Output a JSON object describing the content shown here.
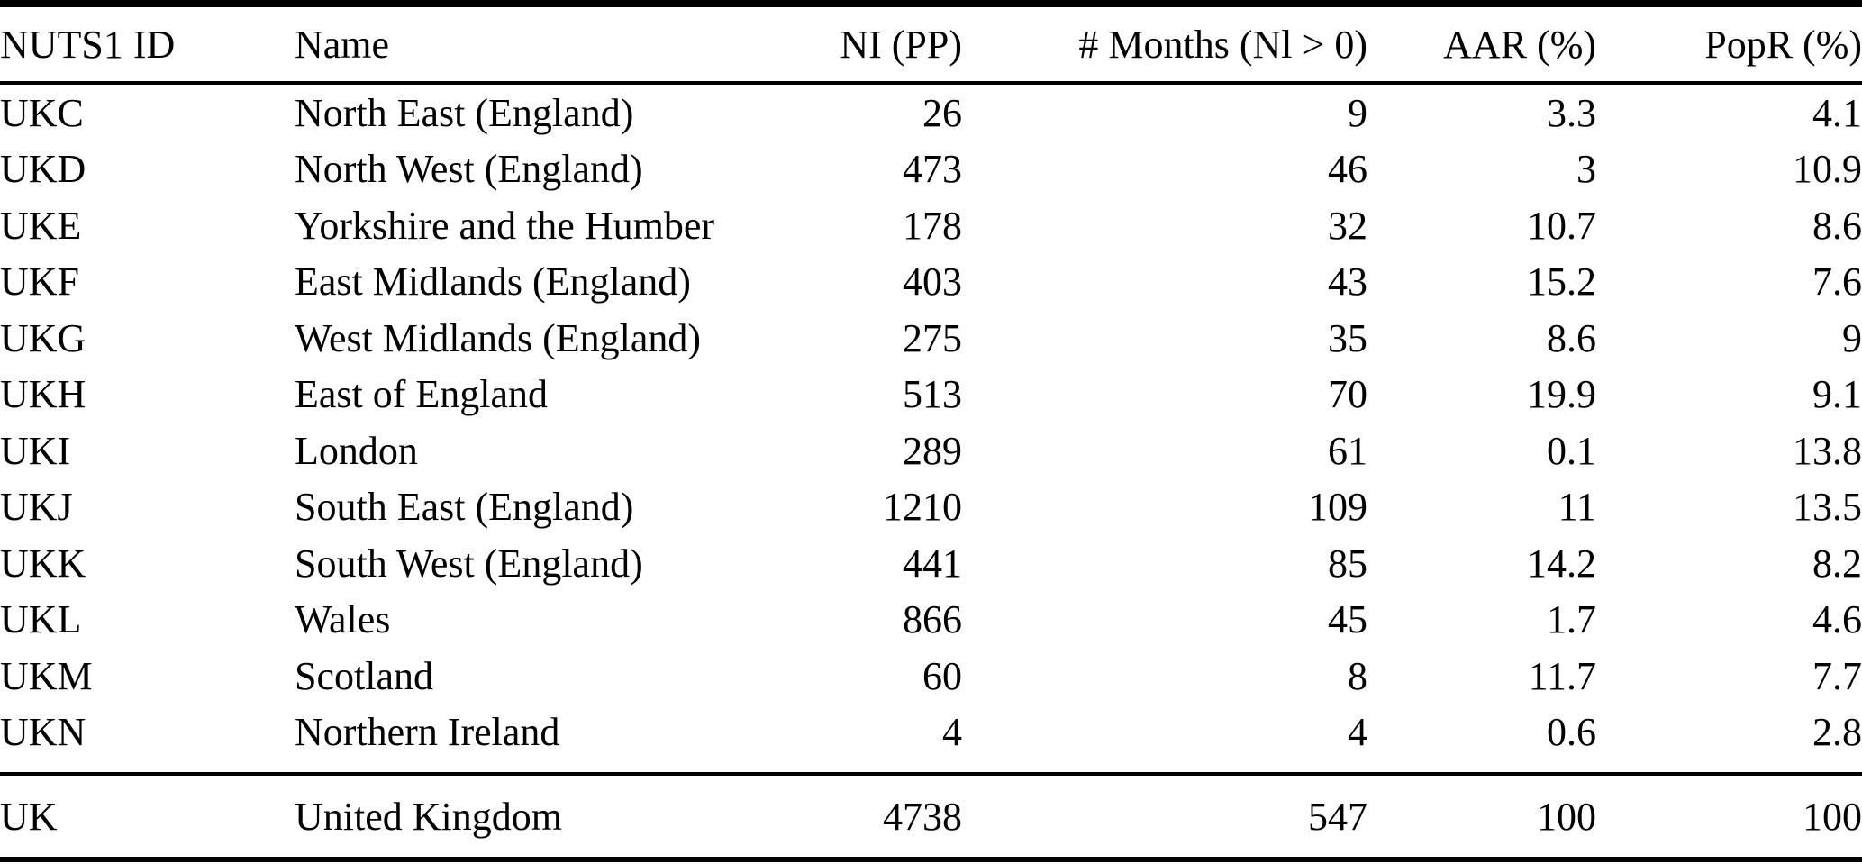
{
  "colors": {
    "text": "#000000",
    "background": "#ffffff",
    "rule": "#000000"
  },
  "chart_data": {
    "type": "table",
    "columns": [
      "NUTS1 ID",
      "Name",
      "NI (PP)",
      "# Months (Nl > 0)",
      "AAR (%)",
      "PopR (%)"
    ],
    "column_alignments": [
      "left",
      "left",
      "right",
      "right",
      "right",
      "right"
    ],
    "rows": [
      [
        "UKC",
        "North East (England)",
        "26",
        "9",
        "3.3",
        "4.1"
      ],
      [
        "UKD",
        "North West (England)",
        "473",
        "46",
        "3",
        "10.9"
      ],
      [
        "UKE",
        "Yorkshire and the Humber",
        "178",
        "32",
        "10.7",
        "8.6"
      ],
      [
        "UKF",
        "East Midlands (England)",
        "403",
        "43",
        "15.2",
        "7.6"
      ],
      [
        "UKG",
        "West Midlands (England)",
        "275",
        "35",
        "8.6",
        "9"
      ],
      [
        "UKH",
        "East of England",
        "513",
        "70",
        "19.9",
        "9.1"
      ],
      [
        "UKI",
        "London",
        "289",
        "61",
        "0.1",
        "13.8"
      ],
      [
        "UKJ",
        "South East (England)",
        "1210",
        "109",
        "11",
        "13.5"
      ],
      [
        "UKK",
        "South West (England)",
        "441",
        "85",
        "14.2",
        "8.2"
      ],
      [
        "UKL",
        "Wales",
        "866",
        "45",
        "1.7",
        "4.6"
      ],
      [
        "UKM",
        "Scotland",
        "60",
        "8",
        "11.7",
        "7.7"
      ],
      [
        "UKN",
        "Northern Ireland",
        "4",
        "4",
        "0.6",
        "2.8"
      ]
    ],
    "total_row": [
      "UK",
      "United Kingdom",
      "4738",
      "547",
      "100",
      "100"
    ],
    "layout": {
      "rules": "horizontal only (top, below header, above total, bottom)",
      "grid": "off"
    }
  }
}
